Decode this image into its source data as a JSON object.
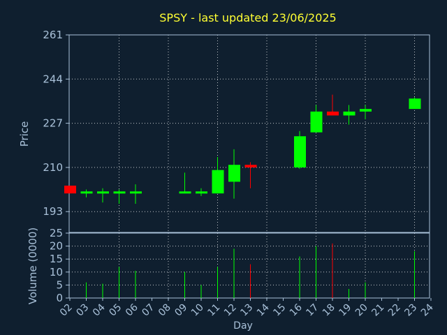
{
  "chart_data": {
    "type": "candlestick",
    "title": "SPSY - last updated 23/06/2025",
    "xlabel": "Day",
    "price_panel": {
      "ylabel": "Price",
      "ylim": [
        185,
        261
      ],
      "yticks": [
        193,
        210,
        227,
        244,
        261
      ],
      "grid": true
    },
    "volume_panel": {
      "ylabel": "Volume (0000)",
      "ylim": [
        0,
        25
      ],
      "yticks": [
        0,
        5,
        10,
        15,
        20,
        25
      ],
      "grid": true
    },
    "x_ticks": [
      "02",
      "03",
      "04",
      "05",
      "06",
      "07",
      "08",
      "09",
      "10",
      "11",
      "12",
      "13",
      "14",
      "15",
      "16",
      "17",
      "18",
      "19",
      "20",
      "21",
      "22",
      "23",
      "24"
    ],
    "colors": {
      "background": "#0f1f2f",
      "axes": "#a9c1d9",
      "title": "#ffff33",
      "up": "#00ff00",
      "down": "#ff0000",
      "grid": "#ffffff"
    },
    "candles": [
      {
        "day": "02",
        "open": 203.0,
        "high": 203.0,
        "low": 200.0,
        "close": 200.0,
        "volume": 0
      },
      {
        "day": "03",
        "open": 200.0,
        "high": 201.5,
        "low": 198.5,
        "close": 200.5,
        "volume": 6
      },
      {
        "day": "04",
        "open": 200.0,
        "high": 202.0,
        "low": 196.5,
        "close": 200.5,
        "volume": 5.5
      },
      {
        "day": "05",
        "open": 200.0,
        "high": 201.5,
        "low": 196.0,
        "close": 200.5,
        "volume": 12
      },
      {
        "day": "06",
        "open": 200.0,
        "high": 203.5,
        "low": 196.0,
        "close": 200.5,
        "volume": 10.5
      },
      {
        "day": "09",
        "open": 200.0,
        "high": 208.0,
        "low": 200.0,
        "close": 200.5,
        "volume": 10
      },
      {
        "day": "10",
        "open": 200.0,
        "high": 202.0,
        "low": 199.0,
        "close": 200.5,
        "volume": 5
      },
      {
        "day": "11",
        "open": 200.0,
        "high": 214.0,
        "low": 200.0,
        "close": 209.0,
        "volume": 12
      },
      {
        "day": "12",
        "open": 204.5,
        "high": 217.0,
        "low": 198.0,
        "close": 211.0,
        "volume": 19
      },
      {
        "day": "13",
        "open": 211.0,
        "high": 212.0,
        "low": 202.0,
        "close": 210.0,
        "volume": 13
      },
      {
        "day": "16",
        "open": 210.0,
        "high": 224.0,
        "low": 209.5,
        "close": 222.0,
        "volume": 16
      },
      {
        "day": "17",
        "open": 223.5,
        "high": 234.0,
        "low": 223.5,
        "close": 231.5,
        "volume": 20
      },
      {
        "day": "18",
        "open": 231.5,
        "high": 238.0,
        "low": 230.0,
        "close": 230.0,
        "volume": 21
      },
      {
        "day": "19",
        "open": 230.0,
        "high": 234.0,
        "low": 226.5,
        "close": 231.5,
        "volume": 3.5
      },
      {
        "day": "20",
        "open": 231.5,
        "high": 234.0,
        "low": 228.5,
        "close": 232.5,
        "volume": 6
      },
      {
        "day": "23",
        "open": 232.5,
        "high": 237.0,
        "low": 232.5,
        "close": 236.5,
        "volume": 18
      }
    ]
  }
}
